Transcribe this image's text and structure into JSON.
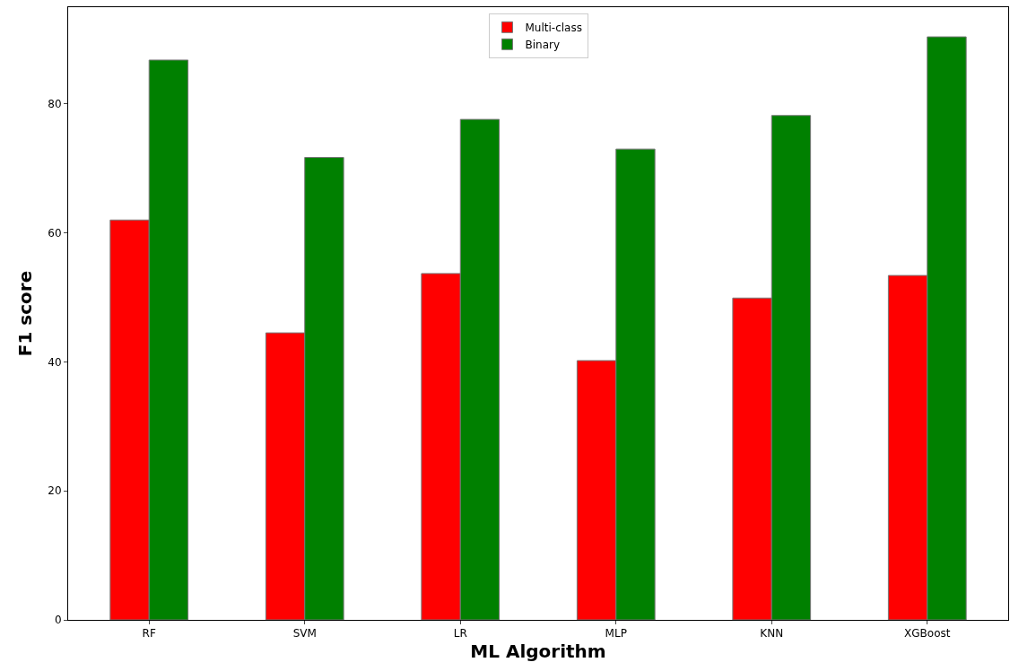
{
  "chart_data": {
    "type": "bar",
    "xlabel": "ML Algorithm",
    "ylabel": "F1 score",
    "categories": [
      "RF",
      "SVM",
      "LR",
      "MLP",
      "KNN",
      "XGBoost"
    ],
    "series": [
      {
        "name": "Multi-class",
        "color": "#ff0000",
        "values": [
          62.0,
          44.5,
          53.7,
          40.2,
          49.9,
          53.4
        ]
      },
      {
        "name": "Binary",
        "color": "#008000",
        "values": [
          86.8,
          71.7,
          77.6,
          73.0,
          78.2,
          90.4
        ]
      }
    ],
    "ylim": [
      0,
      95
    ],
    "yticks": [
      0,
      20,
      40,
      60,
      80
    ],
    "grid": false,
    "legend": "top"
  }
}
